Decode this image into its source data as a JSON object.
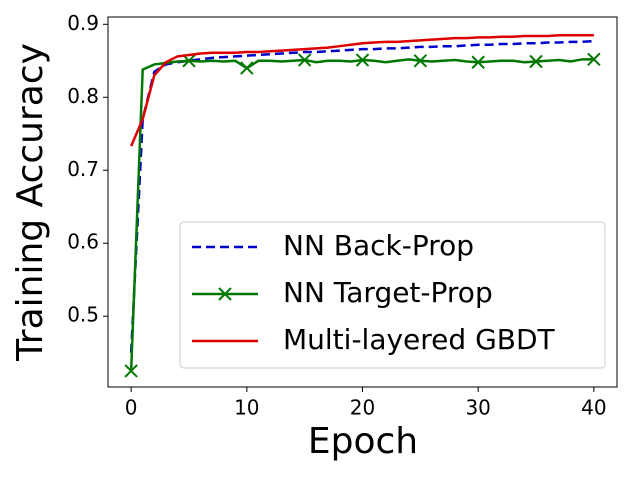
{
  "chart_data": {
    "type": "line",
    "xlabel": "Epoch",
    "ylabel": "Training Accuracy",
    "x": [
      0,
      1,
      2,
      3,
      4,
      5,
      6,
      7,
      8,
      9,
      10,
      11,
      12,
      13,
      14,
      15,
      16,
      17,
      18,
      19,
      20,
      21,
      22,
      23,
      24,
      25,
      26,
      27,
      28,
      29,
      30,
      31,
      32,
      33,
      34,
      35,
      36,
      37,
      38,
      39,
      40
    ],
    "xlim": [
      -2,
      42
    ],
    "xticks": [
      0,
      10,
      20,
      30,
      40
    ],
    "ylim": [
      0.403,
      0.91
    ],
    "yticks": [
      0.5,
      0.6,
      0.7,
      0.8,
      0.9
    ],
    "legend": "lower right",
    "series": [
      {
        "name": "NN Back-Prop",
        "color": "#0000cc",
        "dash": true,
        "values": [
          0.45,
          0.77,
          0.835,
          0.845,
          0.848,
          0.85,
          0.852,
          0.854,
          0.855,
          0.856,
          0.857,
          0.858,
          0.859,
          0.86,
          0.861,
          0.862,
          0.862,
          0.863,
          0.864,
          0.865,
          0.866,
          0.866,
          0.867,
          0.867,
          0.868,
          0.869,
          0.869,
          0.87,
          0.87,
          0.871,
          0.872,
          0.872,
          0.873,
          0.873,
          0.874,
          0.874,
          0.875,
          0.875,
          0.876,
          0.876,
          0.877
        ]
      },
      {
        "name": "NN Target-Prop",
        "color": "#007700",
        "marker": "x",
        "markevery": 5,
        "values": [
          0.425,
          0.838,
          0.845,
          0.847,
          0.849,
          0.85,
          0.849,
          0.85,
          0.849,
          0.85,
          0.84,
          0.85,
          0.85,
          0.849,
          0.85,
          0.851,
          0.848,
          0.85,
          0.85,
          0.849,
          0.851,
          0.85,
          0.848,
          0.85,
          0.852,
          0.85,
          0.849,
          0.85,
          0.851,
          0.849,
          0.848,
          0.849,
          0.85,
          0.85,
          0.848,
          0.849,
          0.85,
          0.851,
          0.849,
          0.852,
          0.852
        ]
      },
      {
        "name": "Multi-layered GBDT",
        "color": "#dd0000",
        "values": [
          0.733,
          0.77,
          0.83,
          0.848,
          0.856,
          0.858,
          0.86,
          0.861,
          0.861,
          0.861,
          0.862,
          0.862,
          0.863,
          0.864,
          0.865,
          0.866,
          0.867,
          0.868,
          0.87,
          0.872,
          0.874,
          0.875,
          0.876,
          0.876,
          0.877,
          0.878,
          0.879,
          0.88,
          0.881,
          0.881,
          0.882,
          0.882,
          0.883,
          0.883,
          0.884,
          0.884,
          0.884,
          0.885,
          0.885,
          0.885,
          0.885
        ]
      }
    ]
  }
}
